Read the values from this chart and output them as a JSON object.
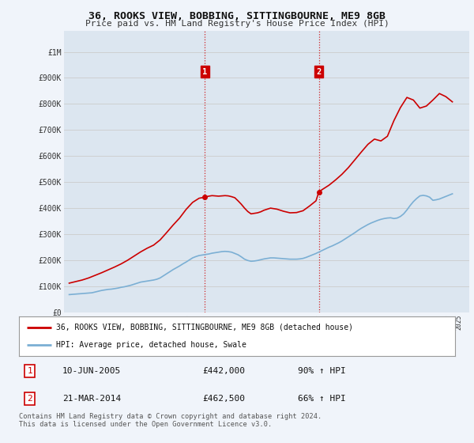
{
  "title": "36, ROOKS VIEW, BOBBING, SITTINGBOURNE, ME9 8GB",
  "subtitle": "Price paid vs. HM Land Registry's House Price Index (HPI)",
  "yticks": [
    0,
    100000,
    200000,
    300000,
    400000,
    500000,
    600000,
    700000,
    800000,
    900000,
    1000000
  ],
  "ytick_labels": [
    "£0",
    "£100K",
    "£200K",
    "£300K",
    "£400K",
    "£500K",
    "£600K",
    "£700K",
    "£800K",
    "£900K",
    "£1M"
  ],
  "ylim": [
    0,
    1080000
  ],
  "xlim_start": 1994.6,
  "xlim_end": 2025.8,
  "marker1_x": 2005.44,
  "marker1_y": 442000,
  "marker1_label": "1",
  "marker1_date": "10-JUN-2005",
  "marker1_price": "£442,000",
  "marker1_hpi": "90% ↑ HPI",
  "marker2_x": 2014.22,
  "marker2_y": 462500,
  "marker2_label": "2",
  "marker2_date": "21-MAR-2014",
  "marker2_price": "£462,500",
  "marker2_hpi": "66% ↑ HPI",
  "red_line_color": "#cc0000",
  "blue_line_color": "#7bafd4",
  "vline_color": "#cc0000",
  "grid_color": "#cccccc",
  "background_color": "#f0f4fa",
  "plot_bg_color": "#dce6f0",
  "legend_label_red": "36, ROOKS VIEW, BOBBING, SITTINGBOURNE, ME9 8GB (detached house)",
  "legend_label_blue": "HPI: Average price, detached house, Swale",
  "footer": "Contains HM Land Registry data © Crown copyright and database right 2024.\nThis data is licensed under the Open Government Licence v3.0.",
  "hpi_years": [
    1995.0,
    1995.25,
    1995.5,
    1995.75,
    1996.0,
    1996.25,
    1996.5,
    1996.75,
    1997.0,
    1997.25,
    1997.5,
    1997.75,
    1998.0,
    1998.25,
    1998.5,
    1998.75,
    1999.0,
    1999.25,
    1999.5,
    1999.75,
    2000.0,
    2000.25,
    2000.5,
    2000.75,
    2001.0,
    2001.25,
    2001.5,
    2001.75,
    2002.0,
    2002.25,
    2002.5,
    2002.75,
    2003.0,
    2003.25,
    2003.5,
    2003.75,
    2004.0,
    2004.25,
    2004.5,
    2004.75,
    2005.0,
    2005.25,
    2005.5,
    2005.75,
    2006.0,
    2006.25,
    2006.5,
    2006.75,
    2007.0,
    2007.25,
    2007.5,
    2007.75,
    2008.0,
    2008.25,
    2008.5,
    2008.75,
    2009.0,
    2009.25,
    2009.5,
    2009.75,
    2010.0,
    2010.25,
    2010.5,
    2010.75,
    2011.0,
    2011.25,
    2011.5,
    2011.75,
    2012.0,
    2012.25,
    2012.5,
    2012.75,
    2013.0,
    2013.25,
    2013.5,
    2013.75,
    2014.0,
    2014.25,
    2014.5,
    2014.75,
    2015.0,
    2015.25,
    2015.5,
    2015.75,
    2016.0,
    2016.25,
    2016.5,
    2016.75,
    2017.0,
    2017.25,
    2017.5,
    2017.75,
    2018.0,
    2018.25,
    2018.5,
    2018.75,
    2019.0,
    2019.25,
    2019.5,
    2019.75,
    2020.0,
    2020.25,
    2020.5,
    2020.75,
    2021.0,
    2021.25,
    2021.5,
    2021.75,
    2022.0,
    2022.25,
    2022.5,
    2022.75,
    2023.0,
    2023.25,
    2023.5,
    2023.75,
    2024.0,
    2024.25,
    2024.5
  ],
  "hpi_values": [
    68000,
    69000,
    70000,
    71000,
    72000,
    73000,
    74000,
    75000,
    78000,
    81000,
    84000,
    86000,
    88000,
    89000,
    91000,
    93000,
    96000,
    98000,
    101000,
    104000,
    108000,
    112000,
    116000,
    118000,
    120000,
    122000,
    124000,
    127000,
    132000,
    140000,
    148000,
    156000,
    164000,
    171000,
    178000,
    186000,
    193000,
    201000,
    209000,
    214000,
    218000,
    220000,
    222000,
    224000,
    227000,
    229000,
    231000,
    233000,
    234000,
    233000,
    231000,
    226000,
    221000,
    213000,
    204000,
    199000,
    196000,
    197000,
    199000,
    202000,
    205000,
    207000,
    209000,
    209000,
    208000,
    207000,
    206000,
    205000,
    204000,
    204000,
    204000,
    205000,
    207000,
    211000,
    216000,
    221000,
    226000,
    232000,
    238000,
    244000,
    250000,
    255000,
    261000,
    267000,
    274000,
    282000,
    290000,
    298000,
    306000,
    315000,
    323000,
    330000,
    337000,
    343000,
    348000,
    353000,
    357000,
    360000,
    362000,
    363000,
    360000,
    362000,
    368000,
    378000,
    393000,
    410000,
    425000,
    437000,
    447000,
    449000,
    447000,
    442000,
    430000,
    432000,
    435000,
    440000,
    445000,
    450000,
    455000
  ],
  "price_years": [
    1995.0,
    1995.5,
    1996.0,
    1996.5,
    1997.0,
    1997.5,
    1998.0,
    1998.5,
    1999.0,
    1999.5,
    2000.0,
    2000.5,
    2001.0,
    2001.5,
    2002.0,
    2002.5,
    2003.0,
    2003.5,
    2004.0,
    2004.5,
    2005.0,
    2005.44,
    2005.75,
    2006.0,
    2006.5,
    2007.0,
    2007.25,
    2007.5,
    2007.75,
    2008.0,
    2008.25,
    2008.5,
    2008.75,
    2009.0,
    2009.25,
    2009.5,
    2009.75,
    2010.0,
    2010.5,
    2011.0,
    2011.5,
    2012.0,
    2012.5,
    2013.0,
    2013.5,
    2014.0,
    2014.22,
    2014.5,
    2015.0,
    2015.5,
    2016.0,
    2016.5,
    2017.0,
    2017.5,
    2018.0,
    2018.5,
    2019.0,
    2019.5,
    2020.0,
    2020.5,
    2021.0,
    2021.5,
    2022.0,
    2022.5,
    2023.0,
    2023.5,
    2024.0,
    2024.5
  ],
  "price_values": [
    112000,
    118000,
    124000,
    132000,
    142000,
    152000,
    163000,
    174000,
    186000,
    200000,
    216000,
    232000,
    246000,
    258000,
    278000,
    306000,
    335000,
    362000,
    395000,
    422000,
    438000,
    442000,
    446000,
    448000,
    446000,
    448000,
    447000,
    444000,
    440000,
    428000,
    415000,
    400000,
    387000,
    378000,
    380000,
    382000,
    386000,
    392000,
    400000,
    396000,
    388000,
    382000,
    383000,
    390000,
    408000,
    428000,
    462500,
    472000,
    488000,
    508000,
    530000,
    556000,
    586000,
    616000,
    645000,
    665000,
    658000,
    676000,
    736000,
    786000,
    825000,
    815000,
    784000,
    792000,
    815000,
    840000,
    828000,
    808000
  ]
}
